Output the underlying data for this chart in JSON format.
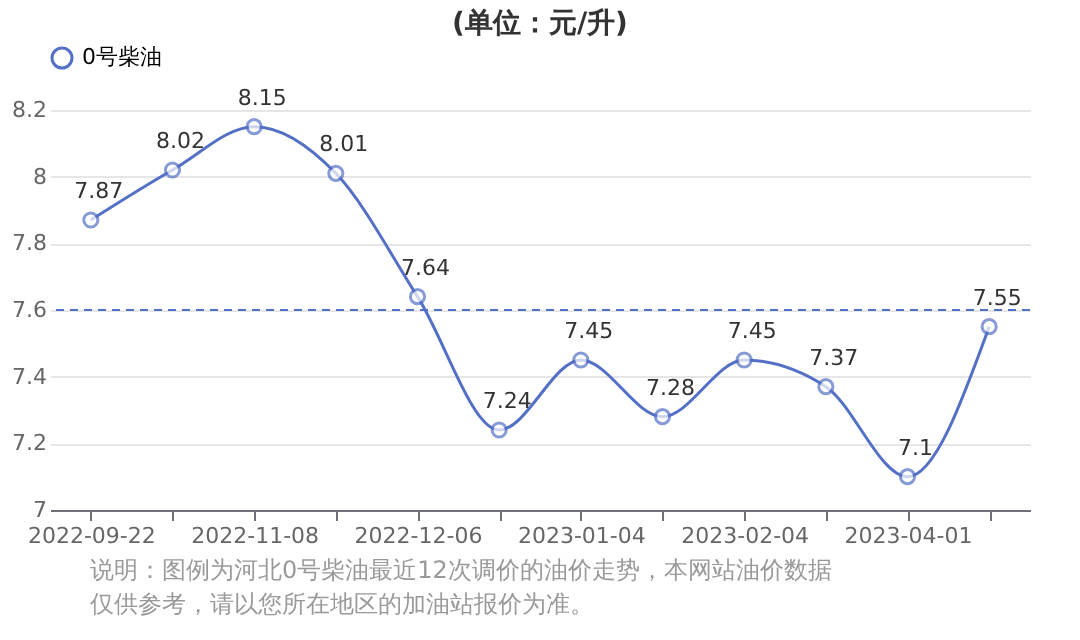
{
  "chart_data": {
    "type": "line",
    "title": "(单位：元/升)",
    "categories": [
      "2022-09-22",
      null,
      "2022-11-08",
      null,
      "2022-12-06",
      null,
      "2023-01-04",
      null,
      "2023-02-04",
      null,
      "2023-04-01",
      null
    ],
    "series": [
      {
        "name": "0号柴油",
        "color": "#5470c6",
        "values": [
          7.87,
          8.02,
          8.15,
          8.01,
          7.64,
          7.24,
          7.45,
          7.28,
          7.45,
          7.37,
          7.1,
          7.55
        ]
      }
    ],
    "ylim": [
      7,
      8.2
    ],
    "yticks": [
      7,
      7.2,
      7.4,
      7.6,
      7.8,
      8,
      8.2
    ],
    "ref_lines": [
      {
        "axis": "y",
        "value": 7.6,
        "color": "#5470c6",
        "line_style": "dashed"
      }
    ],
    "data_labels": true,
    "grid": "y",
    "legend": "top",
    "marker": "circle",
    "annotations": [
      "说明：图例为河北0号柴油最近12次调价的油价走势，本网站油价数据仅供参考，请以您所在地区的加油站报价为准。"
    ]
  }
}
